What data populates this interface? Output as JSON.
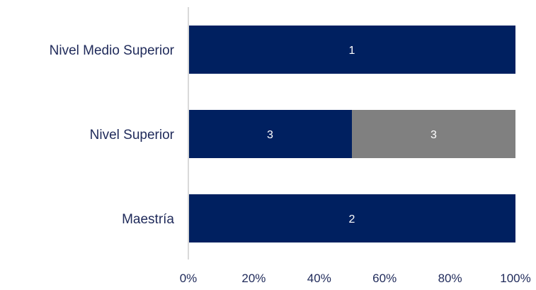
{
  "chart_data": {
    "type": "bar",
    "orientation": "horizontal",
    "stacked": "percent",
    "categories": [
      "Nivel Medio Superior",
      "Nivel Superior",
      "Maestría"
    ],
    "series": [
      {
        "values": [
          1,
          3,
          2
        ],
        "color": "#002060"
      },
      {
        "values": [
          0,
          3,
          0
        ],
        "color": "#808080"
      }
    ],
    "x_ticks": [
      "0%",
      "20%",
      "40%",
      "60%",
      "80%",
      "100%"
    ],
    "xlim": [
      0,
      100
    ],
    "grid": false,
    "legend": "none"
  }
}
